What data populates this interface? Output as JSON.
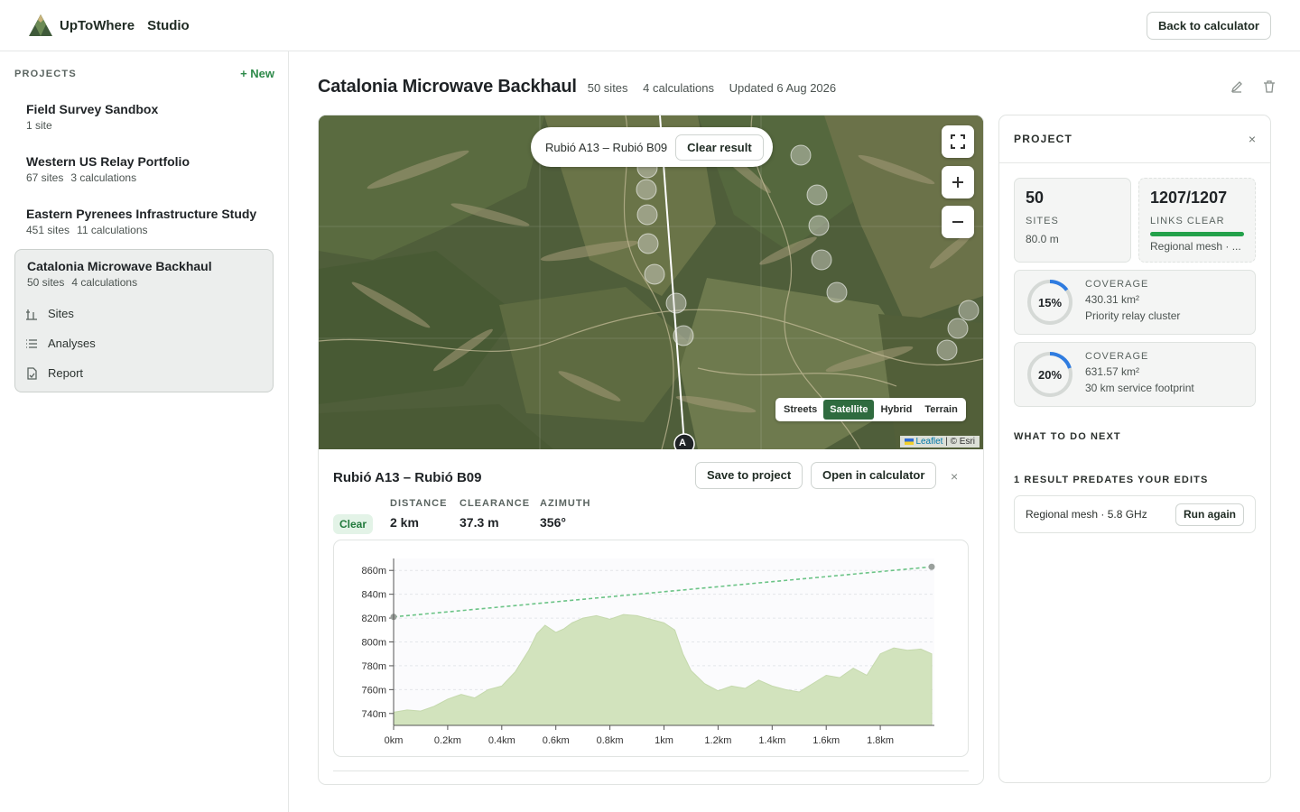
{
  "app": {
    "name": "UpToWhere",
    "section": "Studio",
    "back_button": "Back to calculator"
  },
  "sidebar": {
    "title": "PROJECTS",
    "new_label": "+ New",
    "projects": [
      {
        "name": "Field Survey Sandbox",
        "sites": "1 site",
        "calcs": ""
      },
      {
        "name": "Western US Relay Portfolio",
        "sites": "67 sites",
        "calcs": "3 calculations"
      },
      {
        "name": "Eastern Pyrenees Infrastructure Study",
        "sites": "451 sites",
        "calcs": "11 calculations"
      },
      {
        "name": "Catalonia Microwave Backhaul",
        "sites": "50 sites",
        "calcs": "4 calculations"
      }
    ],
    "subnav": [
      {
        "label": "Sites",
        "icon": "sites-icon"
      },
      {
        "label": "Analyses",
        "icon": "list-icon"
      },
      {
        "label": "Report",
        "icon": "report-icon"
      }
    ]
  },
  "page": {
    "title": "Catalonia Microwave Backhaul",
    "sites": "50 sites",
    "calcs": "4 calculations",
    "updated": "Updated 6 Aug 2026"
  },
  "map": {
    "pill_text": "Rubió A13 – Rubió B09",
    "clear_result": "Clear result",
    "basemaps": [
      "Streets",
      "Satellite",
      "Hybrid",
      "Terrain"
    ],
    "active_basemap": "Satellite",
    "attribution_leaflet": "Leaflet",
    "attribution_rest": " | © Esri",
    "marker_label": "A"
  },
  "result": {
    "title": "Rubió A13 – Rubió B09",
    "save": "Save to project",
    "open": "Open in calculator",
    "close": "×",
    "status": "Clear",
    "distance_label": "DISTANCE",
    "distance": "2 km",
    "clearance_label": "CLEARANCE",
    "clearance": "37.3 m",
    "azimuth_label": "AZIMUTH",
    "azimuth": "356°"
  },
  "panel": {
    "title": "PROJECT",
    "close": "×",
    "sites_count": "50",
    "sites_label": "SITES",
    "sites_sub": "80.0 m",
    "links": "1207/1207",
    "links_label": "LINKS CLEAR",
    "links_sub": "Regional mesh · ...",
    "links_fraction": 1.0,
    "coverage": [
      {
        "pct": "15%",
        "fraction": 0.15,
        "label": "COVERAGE",
        "area": "430.31 km²",
        "name": "Priority relay cluster"
      },
      {
        "pct": "20%",
        "fraction": 0.2,
        "label": "COVERAGE",
        "area": "631.57 km²",
        "name": "30 km service footprint"
      }
    ],
    "next_heading": "WHAT TO DO NEXT",
    "stale_heading": "1 RESULT PREDATES YOUR EDITS",
    "stale_item": "Regional mesh · 5.8 GHz",
    "run_again": "Run again"
  },
  "colors": {
    "accent": "#2e8a4a",
    "brand_dark": "#2f6b3f",
    "ring_blue": "#2f7ce0",
    "terrain_fill": "#d2e3bd",
    "los": "#6cc487"
  },
  "chart_data": {
    "type": "area",
    "x_unit": "km",
    "xlim": [
      0,
      2.0
    ],
    "ylim": [
      730,
      870
    ],
    "x_ticks": [
      "0km",
      "0.2km",
      "0.4km",
      "0.6km",
      "0.8km",
      "1km",
      "1.2km",
      "1.4km",
      "1.6km",
      "1.8km"
    ],
    "y_ticks": [
      "860m",
      "840m",
      "820m",
      "800m",
      "780m",
      "760m",
      "740m"
    ],
    "y_tick_values": [
      860,
      840,
      820,
      800,
      780,
      760,
      740
    ],
    "x_tick_values": [
      0,
      0.2,
      0.4,
      0.6,
      0.8,
      1.0,
      1.2,
      1.4,
      1.6,
      1.8
    ],
    "terrain": {
      "x": [
        0,
        0.05,
        0.1,
        0.15,
        0.2,
        0.25,
        0.3,
        0.35,
        0.4,
        0.45,
        0.5,
        0.53,
        0.56,
        0.6,
        0.63,
        0.66,
        0.7,
        0.75,
        0.8,
        0.85,
        0.9,
        0.95,
        1.0,
        1.04,
        1.07,
        1.1,
        1.15,
        1.2,
        1.25,
        1.3,
        1.35,
        1.4,
        1.45,
        1.5,
        1.55,
        1.6,
        1.65,
        1.7,
        1.75,
        1.8,
        1.85,
        1.9,
        1.95,
        1.99
      ],
      "y": [
        741,
        743,
        742,
        746,
        752,
        756,
        753,
        760,
        763,
        775,
        793,
        807,
        814,
        808,
        811,
        816,
        820,
        822,
        819,
        823,
        822,
        819,
        816,
        810,
        790,
        776,
        765,
        759,
        763,
        761,
        768,
        763,
        760,
        758,
        765,
        772,
        770,
        778,
        772,
        790,
        795,
        793,
        794,
        790
      ]
    },
    "line_of_sight": {
      "x": [
        0,
        1.99
      ],
      "y": [
        821,
        863
      ]
    }
  }
}
